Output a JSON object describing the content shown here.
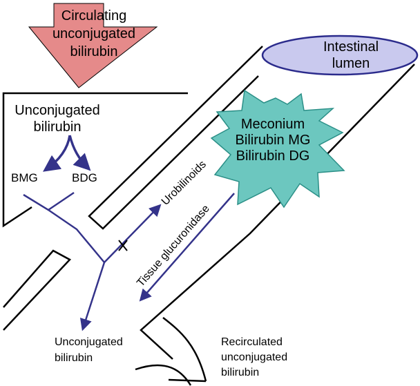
{
  "labels": {
    "circulating_line1": "Circulating",
    "circulating_line2": "unconjugated",
    "circulating_line3": "bilirubin",
    "intestinal_line1": "Intestinal",
    "intestinal_line2": "lumen",
    "unconj_top_line1": "Unconjugated",
    "unconj_top_line2": "bilirubin",
    "bmg": "BMG",
    "bdg": "BDG",
    "meconium_line1": "Meconium",
    "meconium_line2": "Bilirubin MG",
    "meconium_line3": "Bilirubin DG",
    "urobilinoids": "Urobilinoids",
    "tissue_glucuronidase": "Tissue glucuronidase",
    "unconj_bottom_line1": "Unconjugated",
    "unconj_bottom_line2": "bilirubin",
    "recirc_line1": "Recirculated",
    "recirc_line2": "unconjugated",
    "recirc_line3": "bilirubin"
  },
  "colors": {
    "arrow_fill": "#e58a8a",
    "lumen_fill": "#c9c9ee",
    "lumen_stroke": "#2b2b8c",
    "meconium_fill": "#6cc7bf",
    "meconium_stroke": "#2b8f87",
    "pathway": "#34338a",
    "outline": "#000000"
  }
}
